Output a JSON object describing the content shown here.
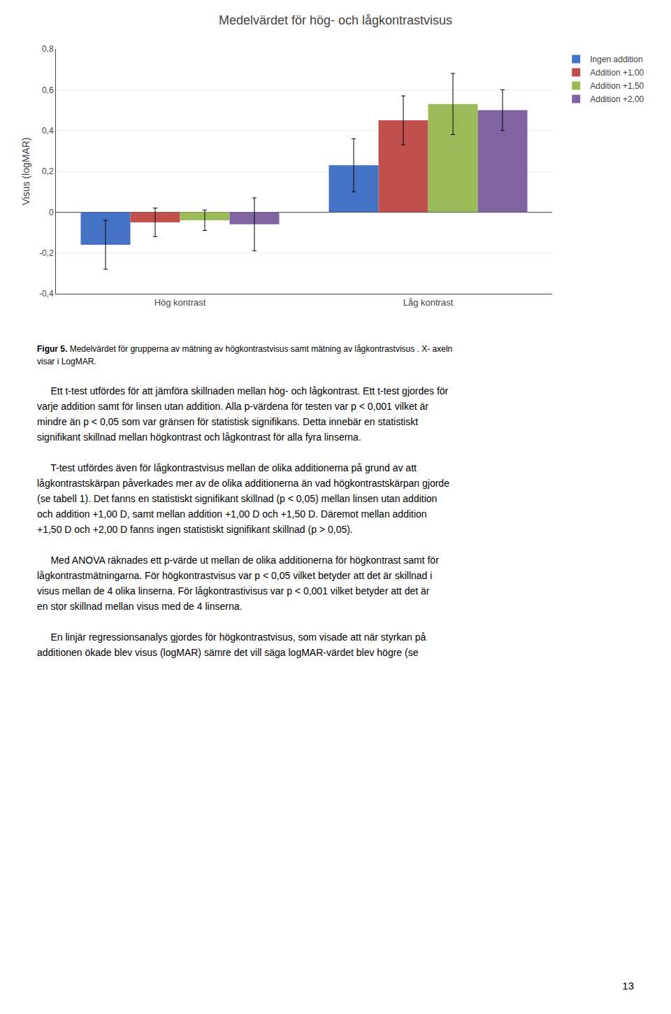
{
  "chart_data": {
    "type": "bar",
    "title": "Medelvärdet för hög- och lågkontrastvisus",
    "ylabel": "Visus (logMAR)",
    "categories": [
      "Hög kontrast",
      "Låg kontrast"
    ],
    "series": [
      {
        "name": "Ingen addition",
        "color": "#4472C4",
        "values": [
          -0.16,
          0.23
        ],
        "errors": [
          0.12,
          0.13
        ]
      },
      {
        "name": "Addition +1,00",
        "color": "#C0504D",
        "values": [
          -0.05,
          0.45
        ],
        "errors": [
          0.07,
          0.12
        ]
      },
      {
        "name": "Addition +1,50",
        "color": "#9BBB59",
        "values": [
          -0.04,
          0.53
        ],
        "errors": [
          0.05,
          0.15
        ]
      },
      {
        "name": "Addition +2,00",
        "color": "#8064A2",
        "values": [
          -0.06,
          0.5
        ],
        "errors": [
          0.13,
          0.1
        ]
      }
    ],
    "ylim": [
      -0.4,
      0.8
    ],
    "yticks": [
      {
        "value": -0.4,
        "label": "-0,4"
      },
      {
        "value": -0.2,
        "label": "-0,2"
      },
      0,
      {
        "value": 0.2,
        "label": "0,2"
      },
      {
        "value": 0.4,
        "label": "0,4"
      },
      {
        "value": 0.6,
        "label": "0,6"
      },
      {
        "value": 0.8,
        "label": "0,8"
      }
    ],
    "grid": true,
    "legend": "upper right"
  },
  "caption_label": "Figur 5.",
  "caption_lines": [
    " Medelvärdet för grupperna av mätning av högkontrastvisus samt mätning av lågkontrastvisus . X- axeln",
    "visar i LogMAR."
  ],
  "paragraphs": [
    [
      "     Ett t-test utfördes för att jämföra skillnaden mellan hög- och lågkontrast. Ett t-test gjordes för",
      "varje addition samt för linsen utan addition. Alla p-värdena för testen var p < 0,001 vilket är",
      "mindre än p < 0,05 som var gränsen för statistisk signifikans. Detta innebär en statistiskt",
      "signifikant skillnad mellan högkontrast och lågkontrast för alla fyra linserna."
    ],
    [
      "     T-test utfördes även för lågkontrastvisus mellan de olika additionerna på grund av att",
      "lågkontrastskärpan påverkades mer av de olika additionerna än vad högkontrastskärpan gjorde",
      "(se tabell 1). Det fanns en statistiskt signifikant skillnad (p < 0,05) mellan linsen utan addition",
      "och addition +1,00 D, samt mellan addition +1,00 D och +1,50 D. Däremot mellan addition",
      "+1,50 D och +2,00 D fanns ingen statistiskt signifikant skillnad (p > 0,05)."
    ],
    [
      "     Med ANOVA räknades ett p-värde ut mellan de olika additionerna för högkontrast samt för",
      "lågkontrastmätningarna. För högkontrastvisus var p < 0,05 vilket betyder att det är skillnad i",
      "visus mellan de 4 olika linserna. För lågkontrastivisus var p < 0,001 vilket betyder att det är",
      "en stor skillnad mellan visus med de 4 linserna."
    ],
    [
      "     En linjär regressionsanalys gjordes för högkontrastvisus, som visade att när styrkan på",
      "additionen ökade blev visus (logMAR) sämre det vill säga logMAR-värdet blev högre (se"
    ]
  ],
  "page_number": "13"
}
